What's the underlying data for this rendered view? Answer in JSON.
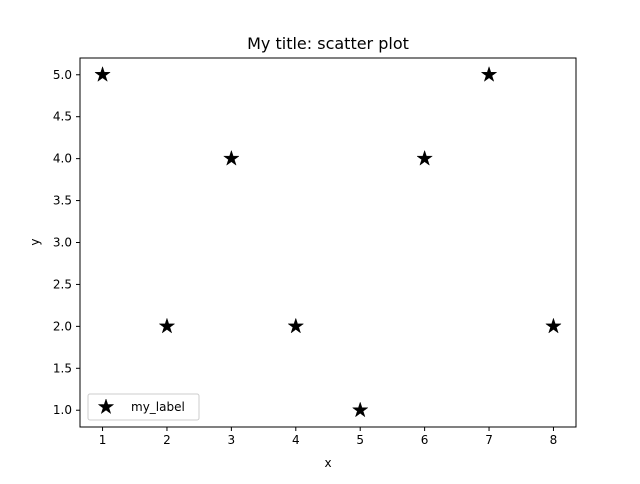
{
  "chart_data": {
    "type": "scatter",
    "title": "My title: scatter plot",
    "xlabel": "x",
    "ylabel": "y",
    "xlim": [
      0.65,
      8.35
    ],
    "ylim": [
      0.8,
      5.2
    ],
    "xticks": [
      1,
      2,
      3,
      4,
      5,
      6,
      7,
      8
    ],
    "yticks": [
      1.0,
      1.5,
      2.0,
      2.5,
      3.0,
      3.5,
      4.0,
      4.5,
      5.0
    ],
    "grid": false,
    "legend_position": "lower-left",
    "series": [
      {
        "name": "my_label",
        "marker": "star",
        "color": "#000000",
        "x": [
          1,
          2,
          3,
          4,
          5,
          6,
          7,
          8
        ],
        "y": [
          5,
          2,
          4,
          2,
          1,
          4,
          5,
          2
        ]
      }
    ]
  }
}
